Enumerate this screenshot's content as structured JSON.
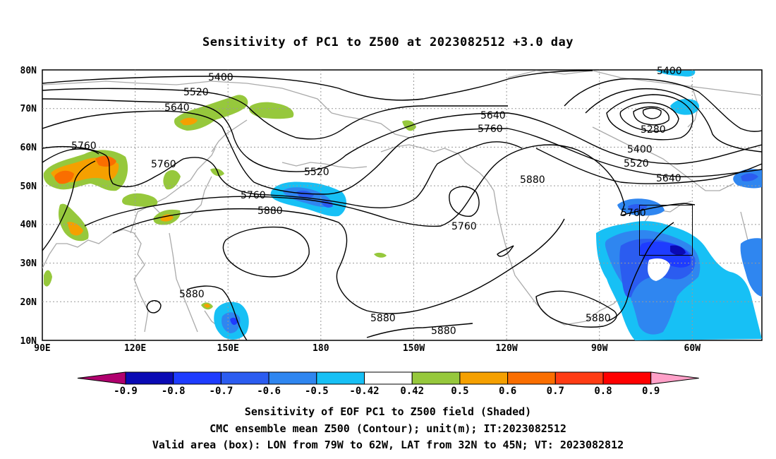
{
  "title": "Sensitivity of PC1 to Z500 at 2023082512 +3.0 day",
  "axes": {
    "lat_labels": [
      "80N",
      "70N",
      "60N",
      "50N",
      "40N",
      "30N",
      "20N",
      "10N"
    ],
    "lon_labels": [
      "90E",
      "120E",
      "150E",
      "180",
      "150W",
      "120W",
      "90W",
      "60W"
    ]
  },
  "contour_labels": {
    "c5400_west": "5400",
    "c5520_west": "5520",
    "c5640_west": "5640",
    "c5760_west1": "5760",
    "c5760_west2": "5760",
    "c5520_mid": "5520",
    "c5640_east": "5640",
    "c5760_east": "5760",
    "c5760_center": "5760",
    "c5880_center": "5880",
    "c5760_low": "5760",
    "c5880_east": "5880",
    "c5400_ne": "5400",
    "c5280_ne": "5280",
    "c5400_ne2": "5400",
    "c5520_ne": "5520",
    "c5640_ne": "5640",
    "c5760_box": "5760",
    "c5880_sw": "5880",
    "c5880_south": "5880",
    "c5880_south2": "5880",
    "c5880_se": "5880"
  },
  "colorbar": {
    "labels": [
      "-0.9",
      "-0.8",
      "-0.7",
      "-0.6",
      "-0.5",
      "-0.42",
      "0.42",
      "0.5",
      "0.6",
      "0.7",
      "0.8",
      "0.9"
    ],
    "colors": [
      "#0a0ab4",
      "#1e3cff",
      "#2b5cf0",
      "#2f86f0",
      "#17c0f5",
      "#ffffff",
      "#96c83c",
      "#f5a000",
      "#fa6e00",
      "#ff3c14",
      "#ff0000"
    ],
    "low_end_color": "#b0006e",
    "high_end_color": "#ffa0c8"
  },
  "captions": {
    "line1": "Sensitivity of EOF PC1 to Z500 field (Shaded)",
    "line2": "CMC ensemble mean Z500 (Contour); unit(m); IT:2023082512",
    "line3": "Valid area (box): LON from 79W to 62W, LAT from 32N to 45N; VT: 2023082812"
  }
}
